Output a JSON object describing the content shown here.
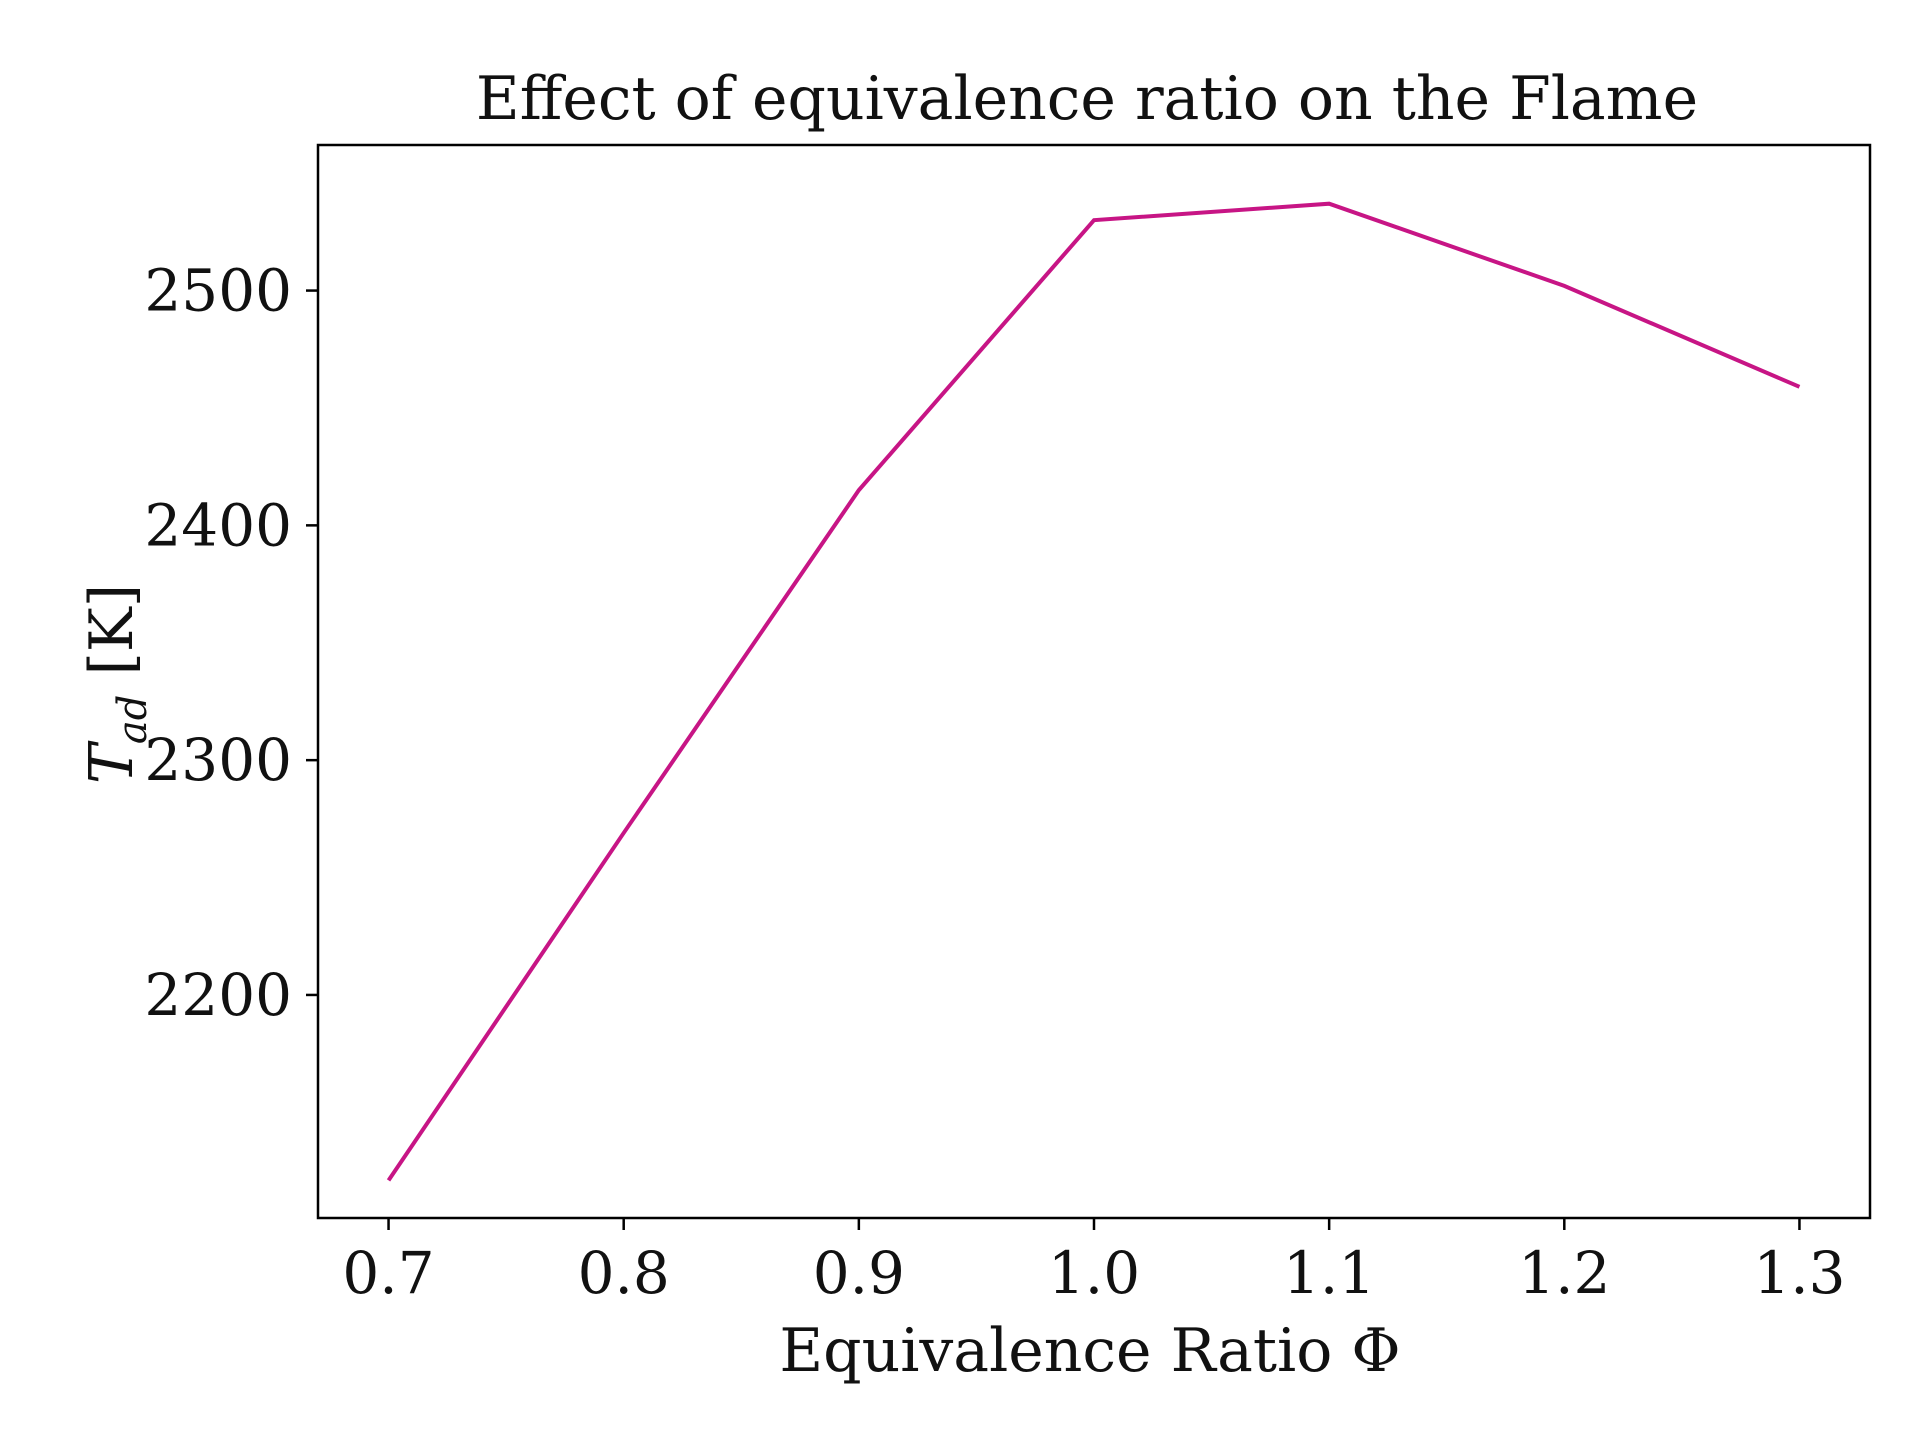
{
  "chart_data": {
    "type": "line",
    "title": "Effect of equivalence ratio on the Flame",
    "xlabel": "Equivalence Ratio Φ",
    "ylabel": {
      "base": "T",
      "subscript": "ad",
      "unit": " [K]"
    },
    "x": [
      0.7,
      0.8,
      0.9,
      1.0,
      1.1,
      1.2,
      1.3
    ],
    "series": [
      {
        "values": [
          2121,
          2269,
          2415,
          2530,
          2537,
          2502,
          2459
        ],
        "color": "#c71585"
      }
    ],
    "xlim": [
      0.67,
      1.33
    ],
    "ylim": [
      2105,
      2562
    ],
    "xticks": [
      0.7,
      0.8,
      0.9,
      1.0,
      1.1,
      1.2,
      1.3
    ],
    "xtick_labels": [
      "0.7",
      "0.8",
      "0.9",
      "1.0",
      "1.1",
      "1.2",
      "1.3"
    ],
    "yticks": [
      2200,
      2300,
      2400,
      2500
    ],
    "ytick_labels": [
      "2200",
      "2300",
      "2400",
      "2500"
    ],
    "grid": false,
    "legend": "none"
  }
}
